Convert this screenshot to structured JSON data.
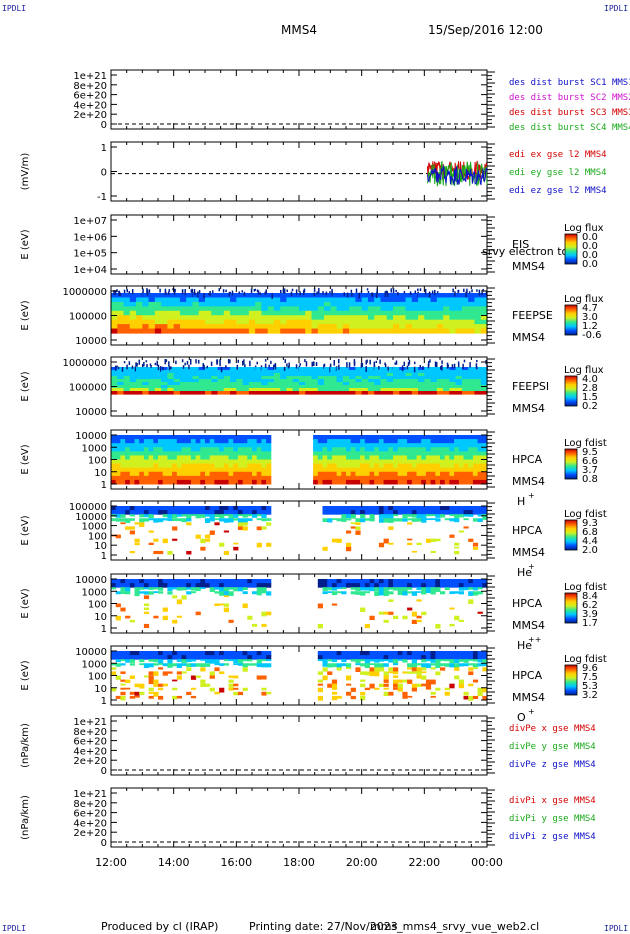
{
  "header": {
    "mission": "MMS4",
    "datetime": "15/Sep/2016 12:00",
    "corner_tag": "IPDLI"
  },
  "footer": {
    "produced_by": "Produced by cl (IRAP)",
    "printing_date": "Printing date: 27/Nov/2023",
    "script_name": "mms_mms4_srvy_vue_web2.cl"
  },
  "colors": {
    "red": "#d40000",
    "green": "#1aaa1a",
    "blue": "#1010c8",
    "magenta": "#d010d0",
    "colorbar": [
      "#001e8c",
      "#0050ff",
      "#00c8ff",
      "#30e890",
      "#d0f020",
      "#ffd000",
      "#ff6000",
      "#c80000"
    ]
  },
  "x_ticks": [
    "12:00",
    "14:00",
    "16:00",
    "18:00",
    "20:00",
    "22:00",
    "00:00"
  ],
  "chart_data": [
    {
      "type": "line",
      "ylabel": "",
      "ytick_labels": [
        "1e+21",
        "8e+20",
        "6e+20",
        "4e+20",
        "2e+20",
        "0"
      ],
      "series": [
        {
          "name": "des dist burst SC1 MMS1",
          "color": "blue"
        },
        {
          "name": "des dist burst SC2 MMS2",
          "color": "magenta"
        },
        {
          "name": "des dist burst SC3 MMS3",
          "color": "red"
        },
        {
          "name": "des dist burst SC4 MMS4",
          "color": "green"
        }
      ]
    },
    {
      "type": "line",
      "ylabel": "(mV/m)",
      "ytick_labels": [
        "1",
        "0",
        "-1"
      ],
      "ylim": [
        -1.3,
        1.5
      ],
      "data_start_hour": 22.1,
      "series": [
        {
          "name": "edi ex gse l2 MMS4",
          "color": "red"
        },
        {
          "name": "edi ey gse l2 MMS4",
          "color": "green"
        },
        {
          "name": "edi ez gse l2 MMS4",
          "color": "blue"
        }
      ]
    },
    {
      "type": "heatmap",
      "ylabel": "E (eV)",
      "ytick_labels": [
        "1e+07",
        "1e+06",
        "1e+05",
        "1e+04"
      ],
      "instrument": "EIS",
      "spacecraft": "MMS4",
      "overlay": "srvy electron to",
      "cbar_title": "Log flux",
      "cbar_ticks": [
        "0.0",
        "0.0",
        "0.0",
        "0.0"
      ],
      "empty": true
    },
    {
      "type": "heatmap",
      "ylabel": "E (eV)",
      "ytick_labels": [
        "1000000",
        "100000",
        "10000"
      ],
      "instrument": "FEEPSE",
      "spacecraft": "MMS4",
      "cbar_title": "Log flux",
      "cbar_ticks": [
        "4.7",
        "3.0",
        "1.2",
        "-0.6"
      ]
    },
    {
      "type": "heatmap",
      "ylabel": "E (eV)",
      "ytick_labels": [
        "1000000",
        "100000",
        "10000"
      ],
      "instrument": "FEEPSI",
      "spacecraft": "MMS4",
      "cbar_title": "Log flux",
      "cbar_ticks": [
        "4.0",
        "2.8",
        "1.5",
        "0.2"
      ]
    },
    {
      "type": "heatmap",
      "ylabel": "E (eV)",
      "ytick_labels": [
        "10000",
        "1000",
        "100",
        "10",
        "1"
      ],
      "instrument": "HPCA",
      "spacecraft": "MMS4",
      "species": "H",
      "charge": "+",
      "cbar_title": "Log fdist",
      "cbar_ticks": [
        "9.5",
        "6.6",
        "3.7",
        "0.8"
      ],
      "gap_hours": [
        17.0,
        18.4
      ]
    },
    {
      "type": "heatmap",
      "ylabel": "E (eV)",
      "ytick_labels": [
        "100000",
        "10000",
        "1000",
        "100",
        "10",
        "1"
      ],
      "instrument": "HPCA",
      "spacecraft": "MMS4",
      "species": "He",
      "charge": "+",
      "cbar_title": "Log fdist",
      "cbar_ticks": [
        "9.3",
        "6.8",
        "4.4",
        "2.0"
      ],
      "gap_hours": [
        17.0,
        18.7
      ]
    },
    {
      "type": "heatmap",
      "ylabel": "E (eV)",
      "ytick_labels": [
        "10000",
        "1000",
        "100",
        "10",
        "1"
      ],
      "instrument": "HPCA",
      "spacecraft": "MMS4",
      "species": "He",
      "charge": "++",
      "cbar_title": "Log fdist",
      "cbar_ticks": [
        "8.4",
        "6.2",
        "3.9",
        "1.7"
      ],
      "gap_hours": [
        17.0,
        18.5
      ]
    },
    {
      "type": "heatmap",
      "ylabel": "E (eV)",
      "ytick_labels": [
        "10000",
        "1000",
        "100",
        "10",
        "1"
      ],
      "instrument": "HPCA",
      "spacecraft": "MMS4",
      "species": "O",
      "charge": "+",
      "cbar_title": "Log fdist",
      "cbar_ticks": [
        "9.6",
        "7.5",
        "5.3",
        "3.2"
      ],
      "gap_hours": [
        17.0,
        18.6
      ]
    },
    {
      "type": "line",
      "ylabel": "(nPa/km)",
      "ytick_labels": [
        "1e+21",
        "8e+20",
        "6e+20",
        "4e+20",
        "2e+20",
        "0"
      ],
      "series": [
        {
          "name": "divPe x gse MMS4",
          "color": "red"
        },
        {
          "name": "divPe y gse MMS4",
          "color": "green"
        },
        {
          "name": "divPe z gse MMS4",
          "color": "blue"
        }
      ]
    },
    {
      "type": "line",
      "ylabel": "(nPa/km)",
      "ytick_labels": [
        "1e+21",
        "8e+20",
        "6e+20",
        "4e+20",
        "2e+20",
        "0"
      ],
      "series": [
        {
          "name": "divPi x gse MMS4",
          "color": "red"
        },
        {
          "name": "divPi y gse MMS4",
          "color": "green"
        },
        {
          "name": "divPi z gse MMS4",
          "color": "blue"
        }
      ]
    }
  ]
}
